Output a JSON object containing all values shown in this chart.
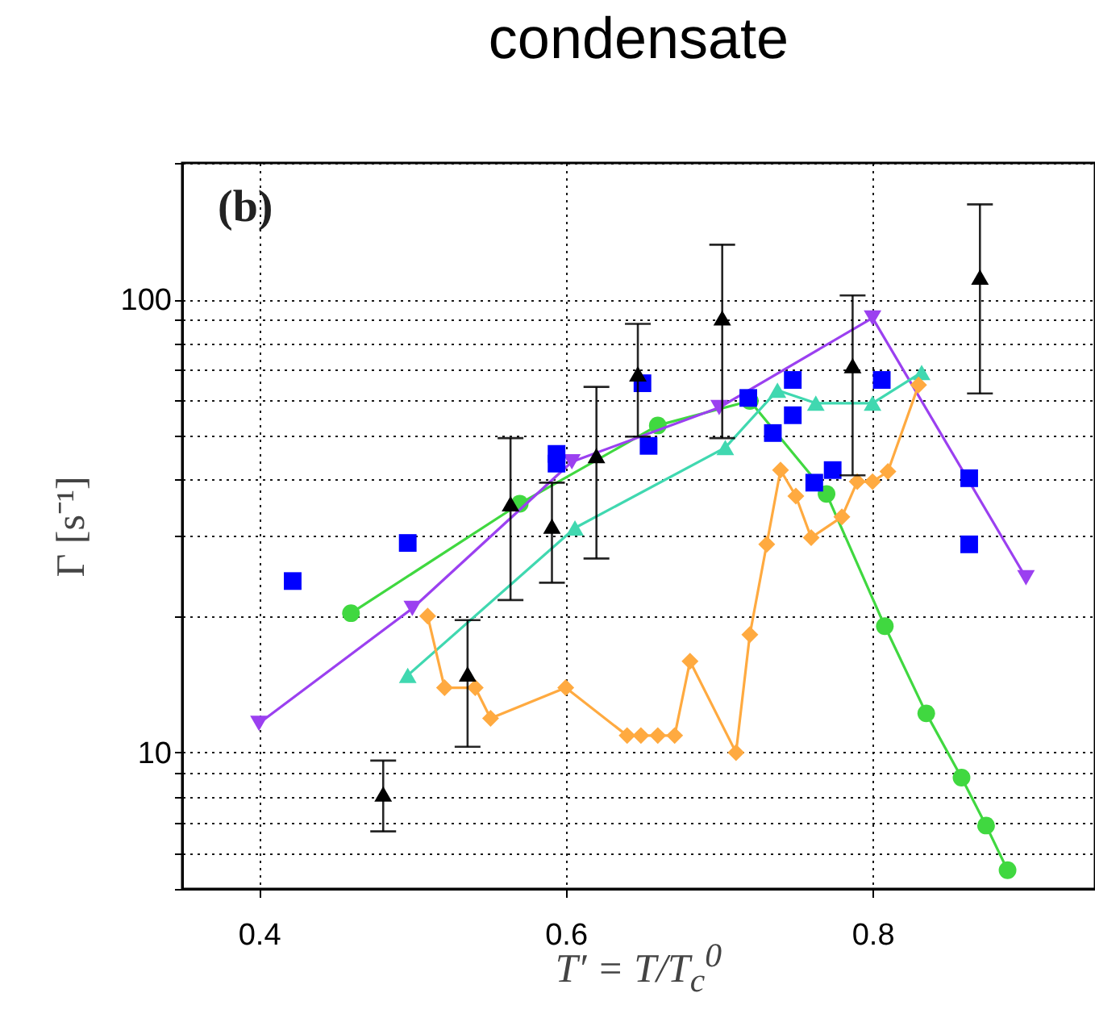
{
  "chart_data": {
    "type": "line",
    "title": "condensate",
    "xlabel": "T′ = T/T$_{c}$$^{0}$",
    "ylabel": "Γ [s⁻¹]",
    "annotations": [
      "(b)"
    ],
    "xlim": [
      0.35,
      0.945
    ],
    "xticks": [
      0.4,
      0.6,
      0.8
    ],
    "ylim": [
      5,
      200
    ],
    "log": true,
    "grid": true,
    "yticks": [
      {
        "value": 5,
        "label": null
      },
      {
        "value": 6,
        "label": null
      },
      {
        "value": 7,
        "label": null
      },
      {
        "value": 8,
        "label": null
      },
      {
        "value": 9,
        "label": null
      },
      10,
      {
        "value": 20,
        "label": null
      },
      {
        "value": 30,
        "label": null
      },
      {
        "value": 40,
        "label": null
      },
      {
        "value": 50,
        "label": null
      },
      {
        "value": 60,
        "label": null
      },
      {
        "value": 70,
        "label": null
      },
      {
        "value": 80,
        "label": null
      },
      {
        "value": 90,
        "label": null
      },
      100,
      {
        "value": 200,
        "label": null
      }
    ],
    "series": [
      {
        "marker": "circle",
        "color": "#40d840",
        "x": [
          0.46,
          0.57,
          0.66,
          0.72,
          0.77,
          0.808,
          0.835,
          0.858,
          0.874,
          0.888
        ],
        "values": [
          20.3,
          35.4,
          52.7,
          59.7,
          37.2,
          19,
          12.2,
          8.8,
          6.9,
          5.5
        ]
      },
      {
        "marker": "triangle-down",
        "color": "#9b40f0",
        "x": [
          0.4,
          0.5,
          0.604,
          0.7,
          0.8,
          0.9
        ],
        "values": [
          11.6,
          20.8,
          43.8,
          57.7,
          91,
          24.3
        ]
      },
      {
        "marker": "triangle",
        "color": "#40d8b0",
        "x": [
          0.497,
          0.606,
          0.704,
          0.738,
          0.763,
          0.8,
          0.832
        ],
        "values": [
          14.8,
          31.3,
          47.1,
          63,
          59,
          59,
          69
        ]
      },
      {
        "marker": "diamond",
        "color": "#ffaa40",
        "x": [
          0.51,
          0.521,
          0.541,
          0.551,
          0.6,
          0.64,
          0.649,
          0.66,
          0.671,
          0.681,
          0.711,
          0.72,
          0.731,
          0.74,
          0.75,
          0.76,
          0.78,
          0.79,
          0.8,
          0.81,
          0.83
        ],
        "values": [
          20,
          13.9,
          13.9,
          11.9,
          13.9,
          10.9,
          10.9,
          10.9,
          10.9,
          15.9,
          10,
          18.2,
          28.8,
          42,
          36.8,
          29.8,
          33.1,
          39.6,
          39.6,
          41.7,
          64.7
        ]
      },
      {
        "type": "scatter",
        "marker": "square",
        "color": "#0000ff",
        "x": [
          0.422,
          0.497,
          0.594,
          0.594,
          0.65,
          0.654,
          0.719,
          0.735,
          0.748,
          0.748,
          0.762,
          0.774,
          0.806,
          0.863,
          0.863
        ],
        "values": [
          23.9,
          29,
          45.6,
          43.4,
          65.3,
          47.5,
          60.6,
          50.7,
          66.4,
          55.5,
          39.4,
          42,
          66.4,
          40.3,
          28.8
        ]
      },
      {
        "type": "scatter",
        "marker": "triangle",
        "color": "#000000",
        "x": [
          0.481,
          0.536,
          0.564,
          0.591,
          0.62,
          0.647,
          0.702,
          0.787,
          0.87
        ],
        "values": [
          8.1,
          14.9,
          35.4,
          31.6,
          45.2,
          68.5,
          91,
          71.4,
          112
        ],
        "errors": [
          [
            6.7,
            9.6
          ],
          [
            10.3,
            19.6
          ],
          [
            21.7,
            49.4
          ],
          [
            23.7,
            39.4
          ],
          [
            26.8,
            64.1
          ],
          [
            49.8,
            88.3
          ],
          [
            49.4,
            132
          ],
          [
            40.9,
            102
          ],
          [
            62,
            162
          ]
        ]
      }
    ]
  }
}
